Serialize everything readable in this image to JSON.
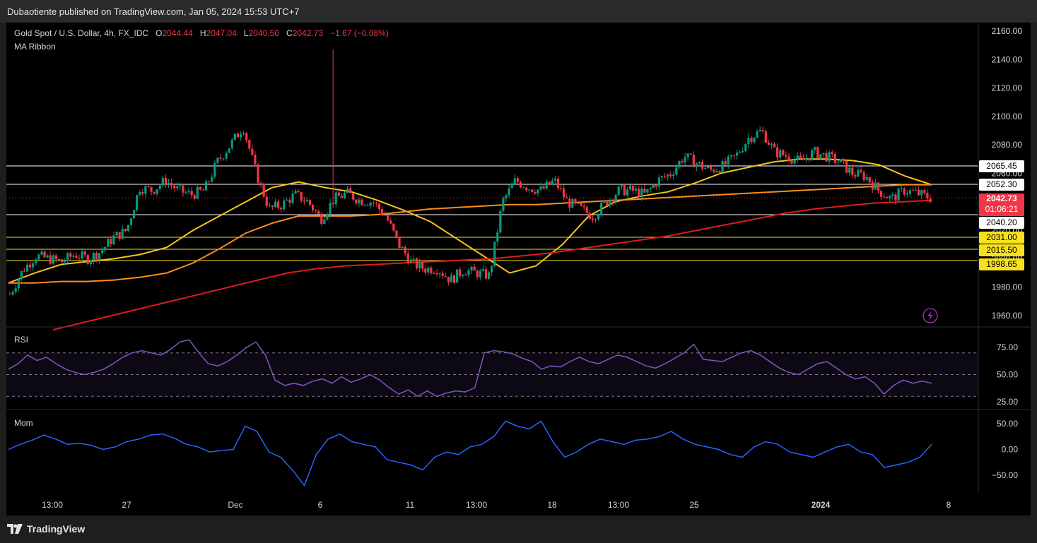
{
  "header": {
    "published": "Dubaotiente published on TradingView.com, Jan 05, 2024 15:53 UTC+7"
  },
  "legend": {
    "symbol": "Gold Spot / U.S. Dollar, 4h, FX_IDC",
    "o_label": "O",
    "o_value": "2044.44",
    "h_label": "H",
    "h_value": "2047.04",
    "l_label": "L",
    "l_value": "2040.50",
    "c_label": "C",
    "c_value": "2042.73",
    "change": "−1.67 (−0.08%)",
    "indicator": "MA Ribbon"
  },
  "panes": {
    "rsi": "RSI",
    "mom": "Mom"
  },
  "price_tags": {
    "r1": "2065.45",
    "r2": "2052.30",
    "last": "2042.73",
    "countdown": "01:06:21",
    "s1": "2040.20",
    "s2": "2031.00",
    "s3": "2015.50",
    "s4": "1998.65"
  },
  "branding": {
    "logo_text": "TradingView"
  },
  "colors": {
    "up": "#089981",
    "down": "#f23645",
    "ma_fast": "#f7c31b",
    "ma_mid": "#ff8c1a",
    "ma_slow": "#e01b1b",
    "rsi": "#7e57c2",
    "mom": "#2962ff",
    "tag_yellow": "#f7e11b"
  },
  "chart_data": [
    {
      "type": "candlestick",
      "title": "Gold Spot / U.S. Dollar, 4h, FX_IDC",
      "ylim": [
        1950,
        2170
      ],
      "y_ticks": [
        1960,
        1980,
        2000,
        2020,
        2040,
        2060,
        2080,
        2100,
        2120,
        2140,
        2160
      ],
      "y_tick_labels": [
        "1960.00",
        "1980.00",
        "2000.00",
        "2020.00",
        "2040.00",
        "2060.00",
        "2080.00",
        "2100.00",
        "2120.00",
        "2140.00",
        "2160.00"
      ],
      "x_tick_labels": [
        "13:00",
        "27",
        "Dec",
        "6",
        "11",
        "13:00",
        "18",
        "13:00",
        "25",
        "2024",
        "8"
      ],
      "close_path": [
        1975,
        1992,
        2002,
        2000,
        1998,
        2003,
        2000,
        2005,
        2015,
        2020,
        2050,
        2048,
        2055,
        2048,
        2045,
        2048,
        2068,
        2080,
        2093,
        2060,
        2035,
        2038,
        2045,
        2040,
        2028,
        2042,
        2046,
        2041,
        2040,
        2030,
        2010,
        1997,
        1993,
        1993,
        1985,
        1992,
        1990,
        1988,
        2040,
        2055,
        2050,
        2048,
        2055,
        2040,
        2035,
        2030,
        2040,
        2048,
        2048,
        2045,
        2055,
        2060,
        2072,
        2067,
        2062,
        2065,
        2072,
        2085,
        2090,
        2075,
        2072,
        2068,
        2075,
        2072,
        2068,
        2060,
        2058,
        2048,
        2042,
        2048,
        2046,
        2042.73
      ],
      "ma_ribbon": [
        {
          "name": "MA fast",
          "values": [
            1983,
            1990,
            1996,
            1998,
            2000,
            2003,
            2008,
            2020,
            2030,
            2040,
            2050,
            2054,
            2050,
            2047,
            2041,
            2034,
            2026,
            2014,
            2002,
            1990,
            1995,
            2010,
            2030,
            2040,
            2044,
            2047,
            2053,
            2060,
            2064,
            2068,
            2070,
            2070,
            2069,
            2066,
            2058,
            2052
          ]
        },
        {
          "name": "MA mid",
          "values": [
            1983,
            1983,
            1984,
            1984,
            1985,
            1987,
            1990,
            1997,
            2007,
            2018,
            2025,
            2030,
            2030,
            2030,
            2031,
            2033,
            2035,
            2036,
            2037,
            2038,
            2038,
            2039,
            2040,
            2041,
            2042,
            2043,
            2044,
            2045,
            2046,
            2047,
            2048,
            2049,
            2050,
            2051,
            2052,
            2052
          ]
        },
        {
          "name": "MA slow",
          "values": [
            1950,
            1955,
            1960,
            1965,
            1970,
            1975,
            1980,
            1985,
            1990,
            1993,
            1995,
            1996,
            1997,
            1998,
            1999,
            2000,
            2002,
            2004,
            2007,
            2010,
            2013,
            2016,
            2020,
            2024,
            2028,
            2032,
            2035,
            2037,
            2039,
            2040,
            2041
          ]
        }
      ]
    },
    {
      "type": "line",
      "name": "RSI",
      "ylim": [
        20,
        85
      ],
      "y_ticks": [
        25,
        50,
        75
      ],
      "y_tick_labels": [
        "25.00",
        "50.00",
        "75.00"
      ],
      "band": [
        30,
        70
      ],
      "values": [
        55,
        60,
        68,
        63,
        66,
        60,
        55,
        52,
        50,
        52,
        55,
        60,
        66,
        70,
        72,
        70,
        68,
        73,
        80,
        82,
        70,
        60,
        58,
        62,
        68,
        75,
        80,
        68,
        45,
        40,
        42,
        40,
        44,
        46,
        42,
        48,
        43,
        46,
        50,
        45,
        38,
        32,
        36,
        30,
        35,
        30,
        33,
        35,
        34,
        38,
        70,
        72,
        71,
        69,
        65,
        62,
        55,
        58,
        57,
        62,
        66,
        62,
        60,
        64,
        68,
        66,
        62,
        58,
        56,
        60,
        65,
        70,
        78,
        64,
        63,
        62,
        66,
        70,
        72,
        68,
        62,
        56,
        52,
        50,
        55,
        60,
        62,
        56,
        50,
        46,
        48,
        42,
        32,
        40,
        45,
        42,
        44,
        42
      ]
    },
    {
      "type": "line",
      "name": "Mom",
      "ylim": [
        -75,
        65
      ],
      "y_ticks": [
        -50,
        0,
        50
      ],
      "y_tick_labels": [
        "−50.00",
        "0.00",
        "50.00"
      ],
      "values": [
        0,
        10,
        18,
        28,
        20,
        10,
        12,
        8,
        0,
        5,
        15,
        20,
        28,
        30,
        22,
        10,
        5,
        -5,
        -2,
        0,
        45,
        35,
        -5,
        -15,
        -40,
        -70,
        -10,
        20,
        30,
        15,
        10,
        5,
        -20,
        -25,
        -30,
        -40,
        -15,
        -5,
        -10,
        5,
        10,
        25,
        55,
        45,
        40,
        55,
        15,
        -15,
        -5,
        10,
        20,
        15,
        10,
        18,
        20,
        25,
        35,
        20,
        10,
        5,
        0,
        -10,
        -15,
        5,
        15,
        10,
        -5,
        -10,
        -15,
        -5,
        5,
        10,
        -5,
        -10,
        -35,
        -30,
        -25,
        -15,
        10
      ]
    }
  ]
}
